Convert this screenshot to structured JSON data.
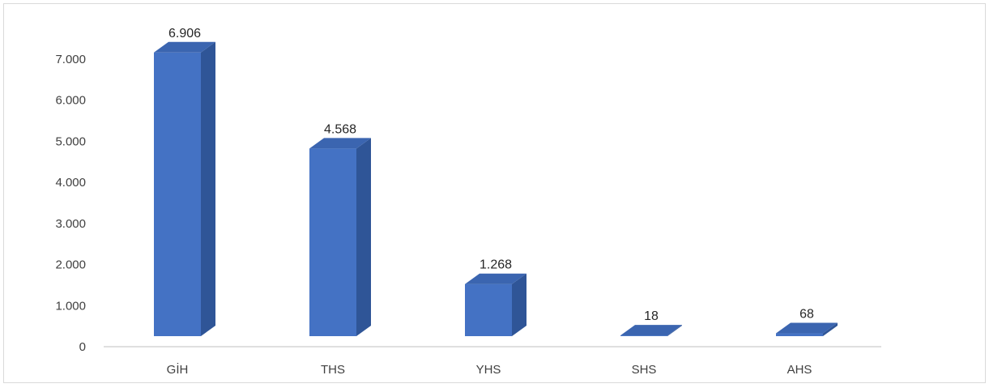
{
  "chart_data": {
    "type": "bar",
    "style": "3d-column",
    "categories": [
      "GİH",
      "THS",
      "YHS",
      "SHS",
      "AHS"
    ],
    "values": [
      6906,
      4568,
      1268,
      18,
      68
    ],
    "data_labels": [
      "6.906",
      "4.568",
      "1.268",
      "18",
      "68"
    ],
    "ylim": [
      0,
      7000
    ],
    "y_ticks": [
      0,
      1000,
      2000,
      3000,
      4000,
      5000,
      6000,
      7000
    ],
    "y_tick_labels": [
      "0",
      "1.000",
      "2.000",
      "3.000",
      "4.000",
      "5.000",
      "6.000",
      "7.000"
    ],
    "grid": false,
    "legend": "none",
    "colors": {
      "front": "#4472c4",
      "side": "#2f5597",
      "top": "#3b65b0",
      "axis": "#bfbfbf"
    }
  }
}
